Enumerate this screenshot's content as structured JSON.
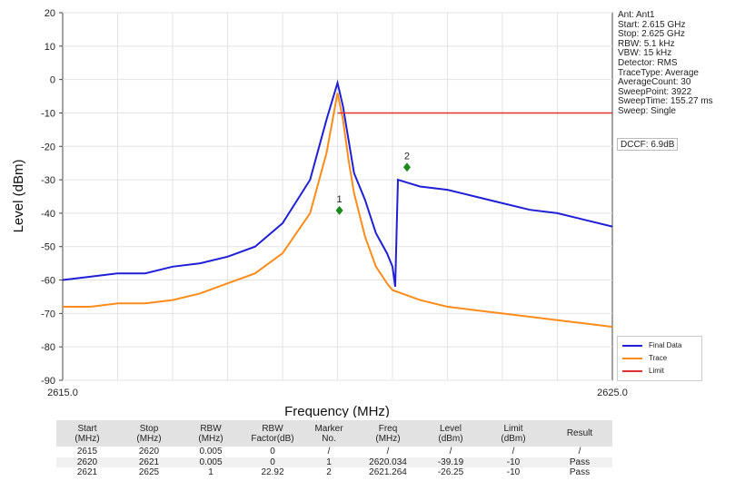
{
  "chart_data": {
    "type": "line",
    "xlabel": "Frequency (MHz)",
    "ylabel": "Level (dBm)",
    "xlim": [
      2615.0,
      2625.0
    ],
    "ylim": [
      -90,
      20
    ],
    "x_tick_labels": [
      "2615.0",
      "2625.0"
    ],
    "y_ticks": [
      20,
      10,
      0,
      -10,
      -20,
      -30,
      -40,
      -50,
      -60,
      -70,
      -80,
      -90
    ],
    "grid": true,
    "legend_position": "bottom-right",
    "series": [
      {
        "name": "Final Data",
        "color": "#1f1fd6",
        "x": [
          2615.0,
          2615.5,
          2616.0,
          2616.5,
          2617.0,
          2617.5,
          2618.0,
          2618.5,
          2619.0,
          2619.5,
          2619.8,
          2620.0,
          2620.1,
          2620.2,
          2620.3,
          2620.5,
          2620.7,
          2620.9,
          2621.0,
          2621.05,
          2621.1,
          2621.3,
          2621.5,
          2622.0,
          2622.5,
          2623.0,
          2623.5,
          2624.0,
          2624.5,
          2625.0
        ],
        "y": [
          -60,
          -59,
          -58,
          -58,
          -56,
          -55,
          -53,
          -50,
          -43,
          -30,
          -12,
          -1,
          -8,
          -18,
          -28,
          -36,
          -46,
          -52,
          -56,
          -62,
          -30,
          -31,
          -32,
          -33,
          -35,
          -37,
          -39,
          -40,
          -42,
          -44
        ]
      },
      {
        "name": "Trace",
        "color": "#ff8c1a",
        "x": [
          2615.0,
          2615.5,
          2616.0,
          2616.5,
          2617.0,
          2617.5,
          2618.0,
          2618.5,
          2619.0,
          2619.5,
          2619.8,
          2620.0,
          2620.1,
          2620.2,
          2620.3,
          2620.5,
          2620.7,
          2620.9,
          2621.0,
          2621.5,
          2622.0,
          2622.5,
          2623.0,
          2623.5,
          2624.0,
          2624.5,
          2625.0
        ],
        "y": [
          -68,
          -68,
          -67,
          -67,
          -66,
          -64,
          -61,
          -58,
          -52,
          -40,
          -22,
          -4,
          -12,
          -24,
          -34,
          -47,
          -56,
          -61,
          -63,
          -66,
          -68,
          -69,
          -70,
          -71,
          -72,
          -73,
          -74
        ]
      },
      {
        "name": "Limit",
        "color": "#e03030",
        "x": [
          2620.0,
          2625.0
        ],
        "y": [
          -10,
          -10
        ]
      }
    ],
    "markers": [
      {
        "label": "1",
        "freq": 2620.034,
        "level": -39.19,
        "color": "#1a8a1a"
      },
      {
        "label": "2",
        "freq": 2621.264,
        "level": -26.25,
        "color": "#1a8a1a"
      }
    ]
  },
  "info_panel": {
    "lines": [
      "Ant: Ant1",
      "Start: 2.615 GHz",
      "Stop: 2.625 GHz",
      "RBW: 5.1 kHz",
      "VBW: 15 kHz",
      "Detector: RMS",
      "TraceType: Average",
      "AverageCount: 30",
      "SweepPoint: 3922",
      "SweepTime: 155.27 ms",
      "Sweep: Single"
    ],
    "dccf": "DCCF: 6.9dB"
  },
  "legend": {
    "items": [
      {
        "label": "Final Data",
        "color": "#1f1fd6"
      },
      {
        "label": "Trace",
        "color": "#ff8c1a"
      },
      {
        "label": "Limit",
        "color": "#e03030"
      }
    ]
  },
  "table": {
    "headers": [
      "Start\n(MHz)",
      "Stop\n(MHz)",
      "RBW\n(MHz)",
      "RBW\nFactor(dB)",
      "Marker\nNo.",
      "Freq\n(MHz)",
      "Level\n(dBm)",
      "Limit\n(dBm)",
      "Result"
    ],
    "rows": [
      [
        "2615",
        "2620",
        "0.005",
        "0",
        "/",
        "/",
        "/",
        "/",
        "/"
      ],
      [
        "2620",
        "2621",
        "0.005",
        "0",
        "1",
        "2620.034",
        "-39.19",
        "-10",
        "Pass"
      ],
      [
        "2621",
        "2625",
        "1",
        "22.92",
        "2",
        "2621.264",
        "-26.25",
        "-10",
        "Pass"
      ]
    ]
  }
}
